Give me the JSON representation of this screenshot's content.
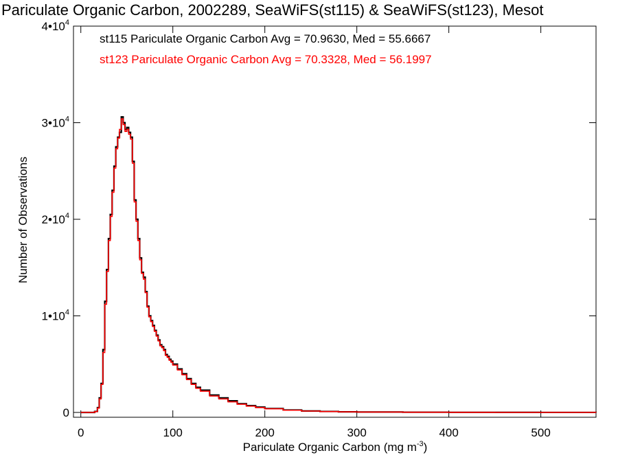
{
  "chart_data": {
    "type": "line",
    "title": "Pariculate Organic Carbon, 2002289, SeaWiFS(st115) & SeaWiFS(st123), Mesot",
    "xlabel": "Pariculate Organic Carbon (mg m",
    "xlabel_sup": "-3",
    "xlabel_close": ")",
    "ylabel": "Number of Observations",
    "xlim": [
      -8,
      560
    ],
    "ylim": [
      -500,
      40000
    ],
    "x_ticks": [
      0,
      100,
      200,
      300,
      400,
      500
    ],
    "x_tick_labels": [
      "0",
      "100",
      "200",
      "300",
      "400",
      "500"
    ],
    "y_ticks": [
      0,
      10000,
      20000,
      30000,
      40000
    ],
    "y_tick_labels": [
      {
        "base": "0",
        "exp": ""
      },
      {
        "base": "1•10",
        "exp": "4"
      },
      {
        "base": "2•10",
        "exp": "4"
      },
      {
        "base": "3•10",
        "exp": "4"
      },
      {
        "base": "4•10",
        "exp": "4"
      }
    ],
    "annotations": [
      {
        "text": "st115 Pariculate Organic Carbon Avg = 70.9630, Med = 55.6667",
        "color": "#000000"
      },
      {
        "text": "st123 Pariculate Organic Carbon Avg = 70.3328, Med = 56.1997",
        "color": "#ff0000"
      }
    ],
    "series": [
      {
        "color": "#000000",
        "x": [
          0,
          10,
          15,
          18,
          20,
          22,
          24,
          26,
          28,
          30,
          32,
          34,
          36,
          38,
          40,
          42,
          44,
          46,
          48,
          50,
          52,
          54,
          56,
          58,
          60,
          62,
          64,
          66,
          68,
          70,
          72,
          74,
          76,
          78,
          80,
          82,
          84,
          86,
          88,
          90,
          92,
          94,
          96,
          98,
          100,
          105,
          110,
          115,
          120,
          125,
          130,
          140,
          150,
          160,
          170,
          180,
          190,
          200,
          220,
          240,
          260,
          280,
          300,
          350,
          400,
          450,
          500,
          560
        ],
        "y": [
          0,
          0,
          100,
          500,
          1500,
          3000,
          6500,
          11500,
          14800,
          18000,
          20500,
          23000,
          25500,
          27500,
          28500,
          29000,
          30600,
          30000,
          29300,
          29500,
          29000,
          28500,
          26000,
          22000,
          20000,
          18000,
          16000,
          14500,
          14000,
          12500,
          11000,
          10000,
          9500,
          9000,
          8500,
          8000,
          7500,
          7000,
          6800,
          6500,
          6000,
          5800,
          5500,
          5300,
          5000,
          4500,
          4000,
          3500,
          3000,
          2600,
          2300,
          1800,
          1500,
          1200,
          900,
          700,
          550,
          400,
          250,
          150,
          100,
          60,
          40,
          20,
          10,
          5,
          2,
          0
        ]
      },
      {
        "color": "#ff0000",
        "x": [
          0,
          10,
          15,
          18,
          20,
          22,
          24,
          26,
          28,
          30,
          32,
          34,
          36,
          38,
          40,
          42,
          44,
          46,
          48,
          50,
          52,
          54,
          56,
          58,
          60,
          62,
          64,
          66,
          68,
          70,
          72,
          74,
          76,
          78,
          80,
          82,
          84,
          86,
          88,
          90,
          92,
          94,
          96,
          98,
          100,
          105,
          110,
          115,
          120,
          125,
          130,
          140,
          150,
          160,
          170,
          180,
          190,
          200,
          220,
          240,
          260,
          280,
          300,
          350,
          400,
          450,
          500,
          560
        ],
        "y": [
          0,
          0,
          80,
          450,
          1400,
          2900,
          6200,
          11200,
          14600,
          17800,
          20300,
          22800,
          25300,
          27300,
          28400,
          29300,
          30400,
          29800,
          29100,
          29300,
          28800,
          28300,
          25800,
          21800,
          19800,
          17800,
          15800,
          14400,
          13800,
          12400,
          10900,
          9900,
          9400,
          8900,
          8400,
          7900,
          7400,
          6900,
          6700,
          6400,
          5900,
          5700,
          5400,
          5200,
          4900,
          4400,
          3900,
          3400,
          2900,
          2500,
          2200,
          1700,
          1400,
          1100,
          850,
          650,
          500,
          380,
          230,
          140,
          90,
          55,
          35,
          18,
          8,
          4,
          1,
          0
        ]
      }
    ]
  }
}
